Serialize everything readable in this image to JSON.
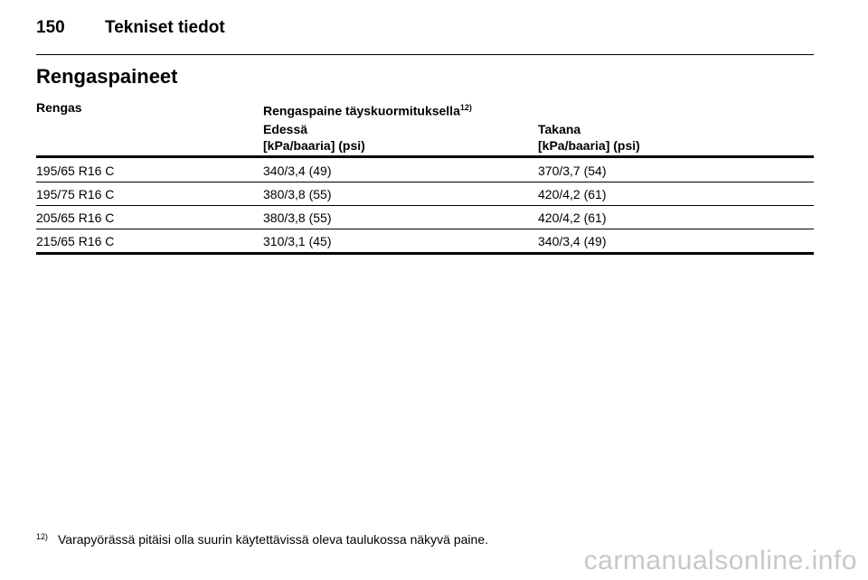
{
  "page_header": {
    "number": "150",
    "title": "Tekniset tiedot"
  },
  "section_title": "Rengaspaineet",
  "table": {
    "col1_header": "Rengas",
    "col2_header": "Rengaspaine täyskuormituksella",
    "col2_header_note": "12)",
    "front": {
      "label": "Edessä",
      "unit": "[kPa/baaria] (psi)"
    },
    "rear": {
      "label": "Takana",
      "unit": "[kPa/baaria] (psi)"
    },
    "rows": [
      {
        "tire": "195/65 R16 C",
        "front": "340/3,4 (49)",
        "rear": "370/3,7 (54)"
      },
      {
        "tire": "195/75 R16 C",
        "front": "380/3,8 (55)",
        "rear": "420/4,2 (61)"
      },
      {
        "tire": "205/65 R16 C",
        "front": "380/3,8 (55)",
        "rear": "420/4,2 (61)"
      },
      {
        "tire": "215/65 R16 C",
        "front": "310/3,1 (45)",
        "rear": "340/3,4 (49)"
      }
    ]
  },
  "footnote": {
    "mark": "12)",
    "text": "Varapyörässä pitäisi olla suurin käytettävissä oleva taulukossa näkyvä paine."
  },
  "watermark": "carmanualsonline.info"
}
